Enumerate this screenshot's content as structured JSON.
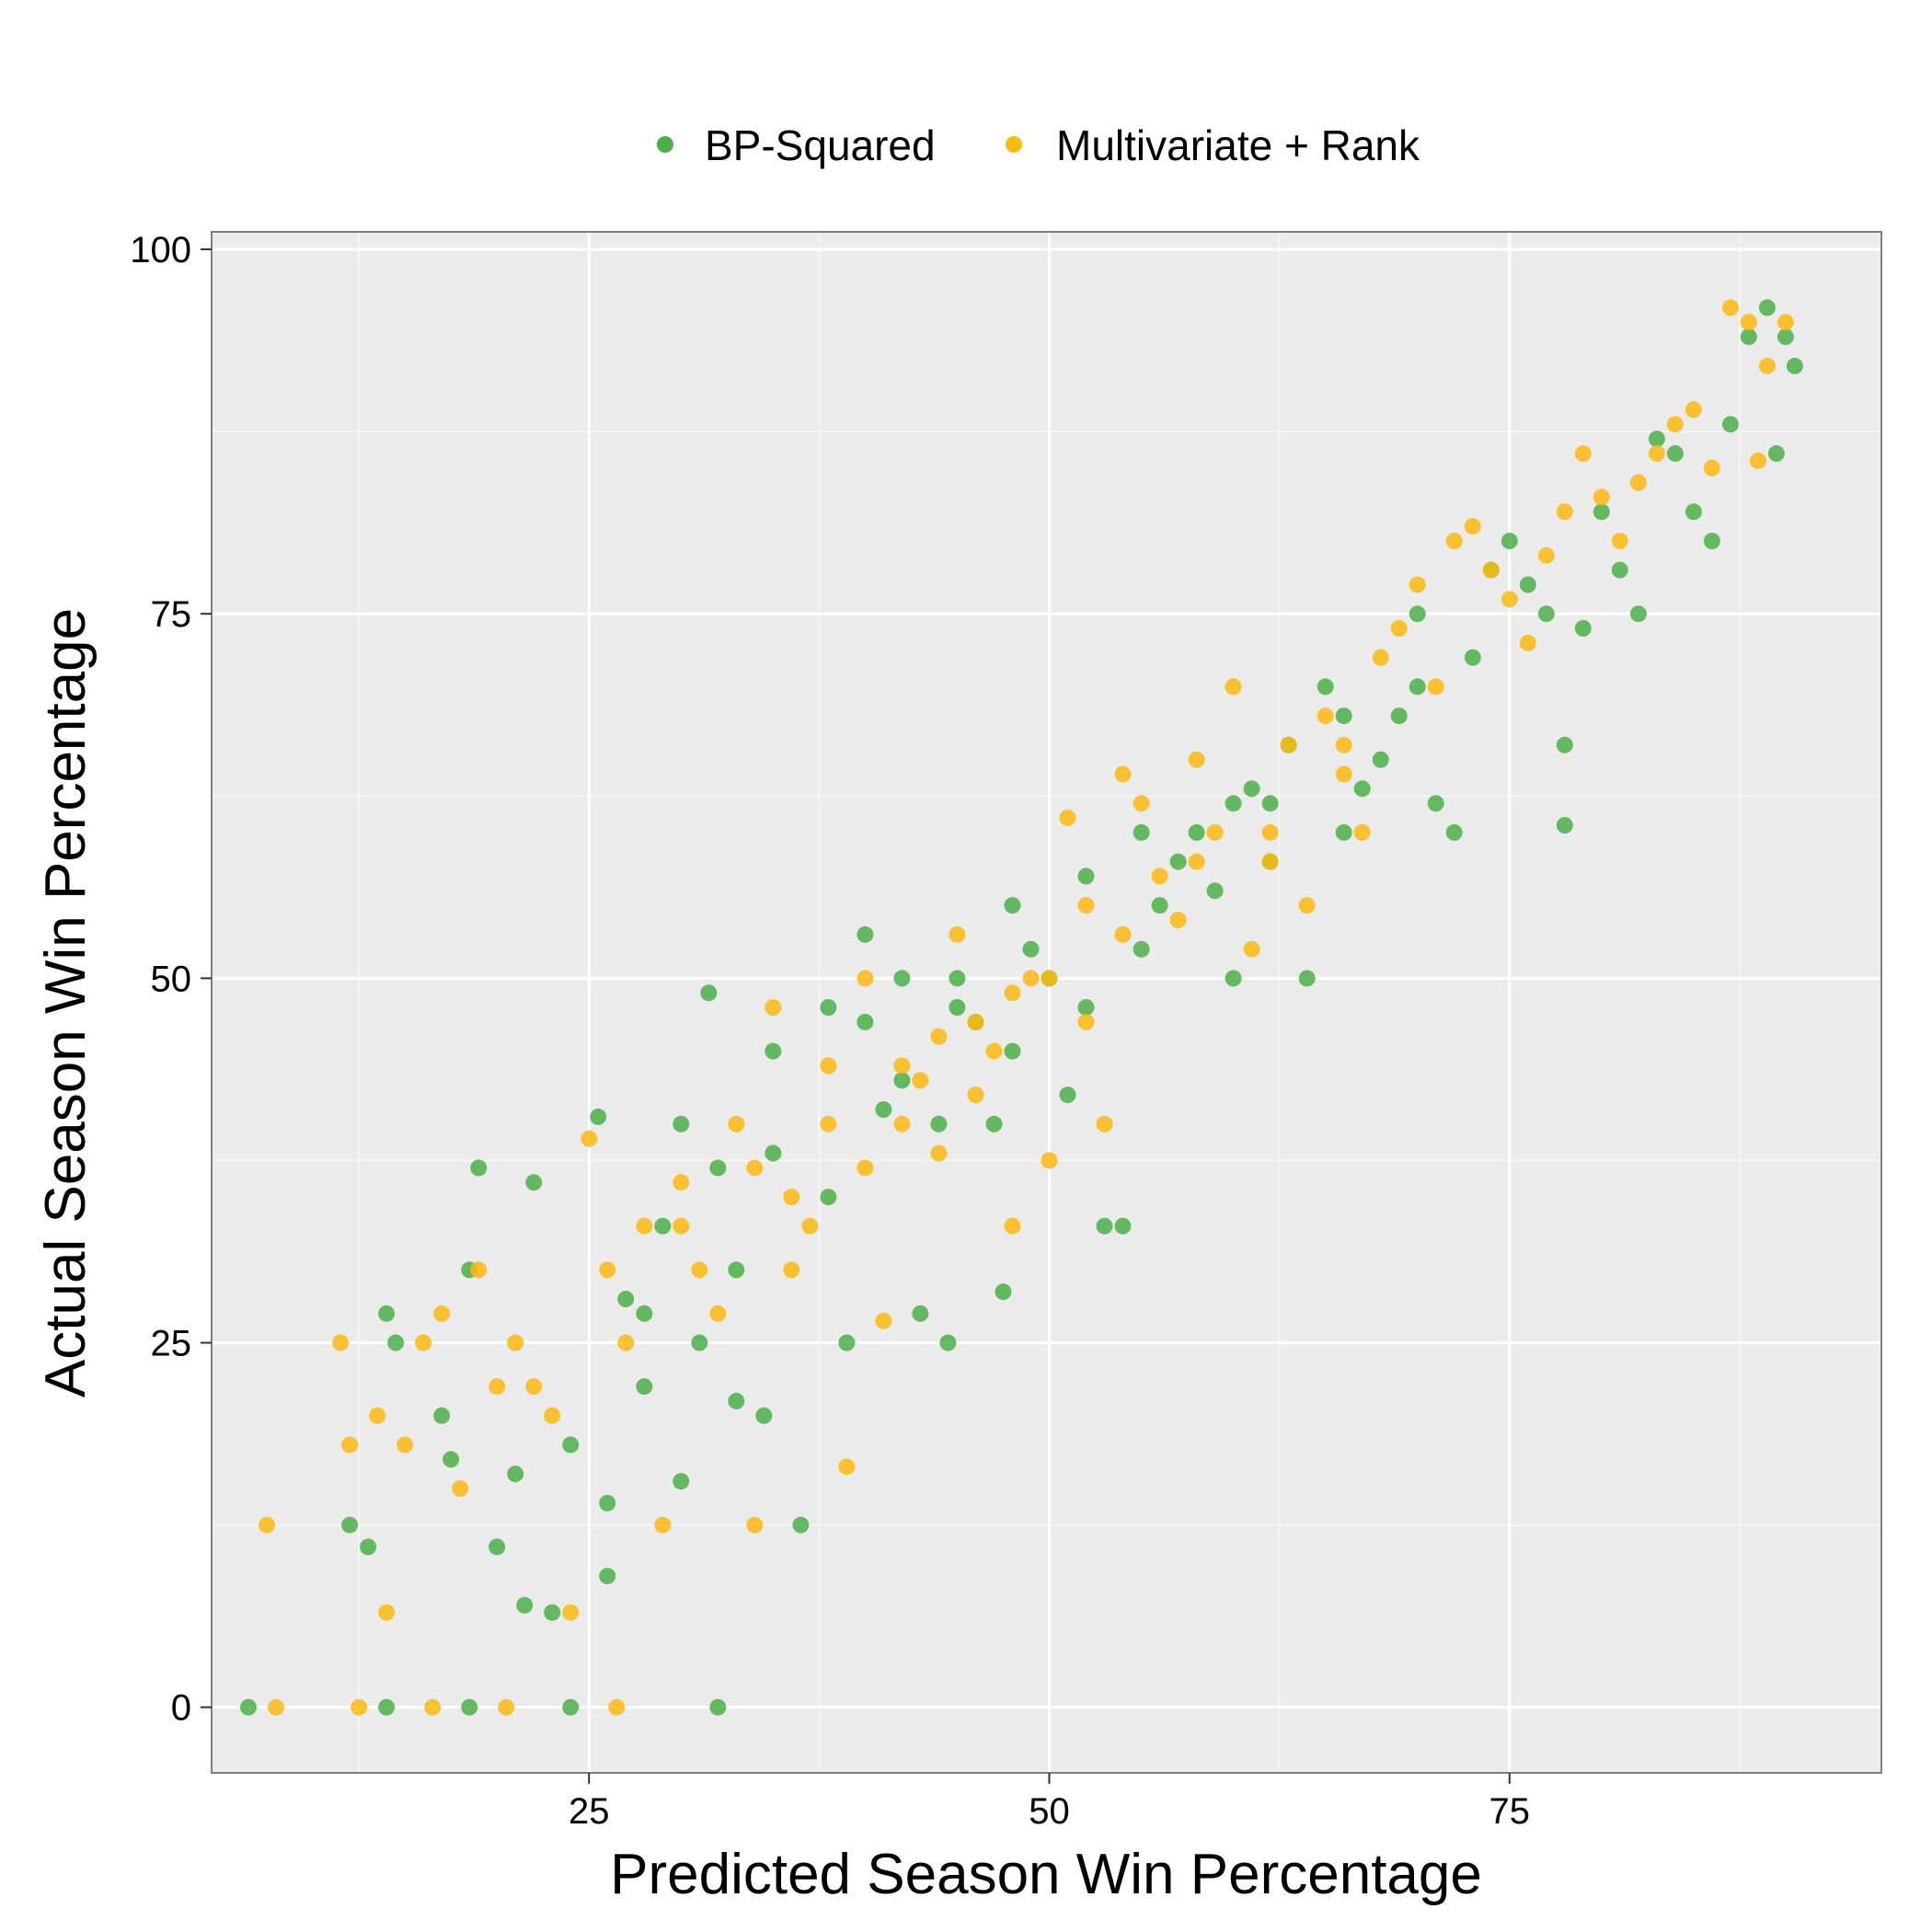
{
  "chart_data": {
    "type": "scatter",
    "title": "",
    "xlabel": "Predicted Season Win Percentage",
    "ylabel": "Actual Season Win Percentage",
    "xlim": [
      4.5,
      95.2
    ],
    "ylim": [
      -4.5,
      101.2
    ],
    "x_ticks": [
      25,
      50,
      75
    ],
    "x_tick_labels": [
      "25",
      "50",
      "75"
    ],
    "y_ticks": [
      0,
      25,
      50,
      75,
      100
    ],
    "y_tick_labels": [
      "0",
      "25",
      "50",
      "75",
      "100"
    ],
    "grid": true,
    "legend_position": "top",
    "colors": {
      "panel_bg": "#ebebeb",
      "grid_major": "#ffffff",
      "bp_squared": "#4daf4a",
      "multivariate_rank": "#fdb913"
    },
    "series": [
      {
        "name": "BP-Squared",
        "color": "#4daf4a",
        "points": [
          [
            6.5,
            0
          ],
          [
            14,
            0
          ],
          [
            18.5,
            0
          ],
          [
            24,
            0
          ],
          [
            32,
            0
          ],
          [
            12,
            12.5
          ],
          [
            13,
            11
          ],
          [
            14,
            27
          ],
          [
            14.5,
            25
          ],
          [
            17,
            20
          ],
          [
            17.5,
            17
          ],
          [
            18.5,
            30
          ],
          [
            19,
            37
          ],
          [
            20,
            11
          ],
          [
            21,
            16
          ],
          [
            21.5,
            7
          ],
          [
            22,
            36
          ],
          [
            23,
            6.5
          ],
          [
            24,
            18
          ],
          [
            25.5,
            40.5
          ],
          [
            26,
            9
          ],
          [
            26,
            14
          ],
          [
            27,
            28
          ],
          [
            28,
            22
          ],
          [
            29,
            33
          ],
          [
            30,
            15.5
          ],
          [
            31,
            25
          ],
          [
            31.5,
            49
          ],
          [
            32,
            37
          ],
          [
            33,
            21
          ],
          [
            34.5,
            20
          ],
          [
            35,
            45
          ],
          [
            36.5,
            12.5
          ],
          [
            38,
            48
          ],
          [
            39,
            25
          ],
          [
            40,
            53
          ],
          [
            41,
            41
          ],
          [
            42,
            43
          ],
          [
            43,
            27
          ],
          [
            44,
            40
          ],
          [
            44.5,
            25
          ],
          [
            45,
            50
          ],
          [
            46,
            47
          ],
          [
            47,
            40
          ],
          [
            47.5,
            28.5
          ],
          [
            48,
            45
          ],
          [
            49,
            52
          ],
          [
            50,
            50
          ],
          [
            51,
            42
          ],
          [
            52,
            48
          ],
          [
            53,
            33
          ],
          [
            54,
            33
          ],
          [
            55,
            52
          ],
          [
            56,
            55
          ],
          [
            57,
            58
          ],
          [
            58,
            60
          ],
          [
            59,
            56
          ],
          [
            60,
            50
          ],
          [
            61,
            63
          ],
          [
            62,
            62
          ],
          [
            63,
            66
          ],
          [
            64,
            50
          ],
          [
            65,
            70
          ],
          [
            66,
            60
          ],
          [
            67,
            63
          ],
          [
            68,
            65
          ],
          [
            69,
            68
          ],
          [
            70,
            75
          ],
          [
            71,
            62
          ],
          [
            72,
            60
          ],
          [
            73,
            72
          ],
          [
            74,
            78
          ],
          [
            75,
            80
          ],
          [
            76,
            77
          ],
          [
            77,
            75
          ],
          [
            78,
            66
          ],
          [
            78,
            60.5
          ],
          [
            79,
            74
          ],
          [
            80,
            82
          ],
          [
            81,
            78
          ],
          [
            82,
            75
          ],
          [
            83,
            87
          ],
          [
            84,
            86
          ],
          [
            85,
            82
          ],
          [
            86,
            80
          ],
          [
            87,
            88
          ],
          [
            88,
            94
          ],
          [
            89,
            96
          ],
          [
            90,
            94
          ],
          [
            90.5,
            92
          ],
          [
            89.5,
            86
          ],
          [
            30,
            40
          ],
          [
            35,
            38
          ],
          [
            40,
            47
          ],
          [
            45,
            48
          ],
          [
            42,
            50
          ],
          [
            38,
            35
          ],
          [
            33,
            30
          ],
          [
            28,
            27
          ],
          [
            48,
            55
          ],
          [
            52,
            57
          ],
          [
            55,
            60
          ],
          [
            60,
            62
          ],
          [
            62,
            58
          ],
          [
            66,
            68
          ],
          [
            70,
            70
          ]
        ]
      },
      {
        "name": "Multivariate + Rank",
        "color": "#fdb913",
        "points": [
          [
            8,
            0
          ],
          [
            12.5,
            0
          ],
          [
            16.5,
            0
          ],
          [
            20.5,
            0
          ],
          [
            26.5,
            0
          ],
          [
            7.5,
            12.5
          ],
          [
            11.5,
            25
          ],
          [
            12,
            18
          ],
          [
            13.5,
            20
          ],
          [
            14,
            6.5
          ],
          [
            15,
            18
          ],
          [
            16,
            25
          ],
          [
            17,
            27
          ],
          [
            18,
            15
          ],
          [
            19,
            30
          ],
          [
            20,
            22
          ],
          [
            21,
            25
          ],
          [
            22,
            22
          ],
          [
            23,
            20
          ],
          [
            24,
            6.5
          ],
          [
            25,
            39
          ],
          [
            26,
            30
          ],
          [
            27,
            25
          ],
          [
            28,
            33
          ],
          [
            29,
            12.5
          ],
          [
            30,
            36
          ],
          [
            31,
            30
          ],
          [
            32,
            27
          ],
          [
            33,
            40
          ],
          [
            34,
            12.5
          ],
          [
            35,
            48
          ],
          [
            36,
            35
          ],
          [
            37,
            33
          ],
          [
            38,
            44
          ],
          [
            39,
            16.5
          ],
          [
            40,
            50
          ],
          [
            41,
            26.5
          ],
          [
            42,
            40
          ],
          [
            43,
            43
          ],
          [
            44,
            38
          ],
          [
            45,
            53
          ],
          [
            46,
            42
          ],
          [
            47,
            45
          ],
          [
            48,
            33
          ],
          [
            49,
            50
          ],
          [
            50,
            37.5
          ],
          [
            51,
            61
          ],
          [
            52,
            47
          ],
          [
            53,
            40
          ],
          [
            54,
            64
          ],
          [
            55,
            62
          ],
          [
            56,
            57
          ],
          [
            57,
            54
          ],
          [
            58,
            65
          ],
          [
            59,
            60
          ],
          [
            60,
            70
          ],
          [
            61,
            52
          ],
          [
            62,
            58
          ],
          [
            63,
            66
          ],
          [
            64,
            55
          ],
          [
            65,
            68
          ],
          [
            66,
            64
          ],
          [
            67,
            60
          ],
          [
            68,
            72
          ],
          [
            69,
            74
          ],
          [
            70,
            77
          ],
          [
            71,
            70
          ],
          [
            72,
            80
          ],
          [
            73,
            81
          ],
          [
            74,
            78
          ],
          [
            75,
            76
          ],
          [
            76,
            73
          ],
          [
            77,
            79
          ],
          [
            78,
            82
          ],
          [
            79,
            86
          ],
          [
            80,
            83
          ],
          [
            81,
            80
          ],
          [
            82,
            84
          ],
          [
            83,
            86
          ],
          [
            84,
            88
          ],
          [
            85,
            89
          ],
          [
            86,
            85
          ],
          [
            87,
            96
          ],
          [
            88,
            95
          ],
          [
            89,
            92
          ],
          [
            90,
            95
          ],
          [
            88.5,
            85.5
          ],
          [
            30,
            33
          ],
          [
            34,
            37
          ],
          [
            38,
            40
          ],
          [
            42,
            44
          ],
          [
            46,
            47
          ],
          [
            50,
            50
          ],
          [
            54,
            53
          ],
          [
            58,
            58
          ],
          [
            62,
            60
          ],
          [
            66,
            66
          ],
          [
            36,
            30
          ],
          [
            40,
            37
          ],
          [
            44,
            46
          ],
          [
            48,
            49
          ],
          [
            52,
            55
          ]
        ]
      }
    ]
  }
}
